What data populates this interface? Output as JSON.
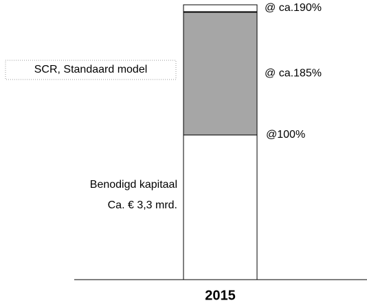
{
  "chart_data": {
    "type": "stacked_bar",
    "categories": [
      "2015"
    ],
    "series": [
      {
        "color": "#ffffff",
        "values": [
          100
        ]
      },
      {
        "color": "#a6a6a6",
        "values": [
          85
        ]
      },
      {
        "color": "#ffffff",
        "values": [
          5
        ]
      }
    ],
    "ylim": [
      0,
      190
    ],
    "annotations": [
      "@100%",
      "@ ca.185%",
      "@ ca.190%"
    ],
    "left_labels": [
      "Benodigd kapitaal",
      "Ca. € 3,3 mrd."
    ],
    "boxed_label": "SCR, Standaard model"
  }
}
